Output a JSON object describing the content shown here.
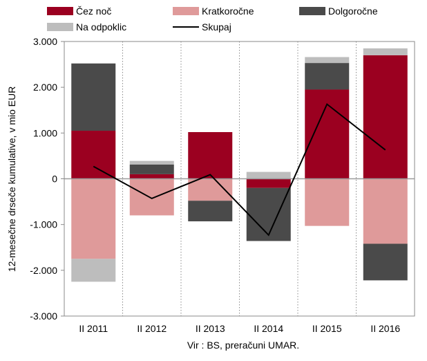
{
  "chart_data": {
    "type": "bar",
    "stacked": true,
    "categories": [
      "II 2011",
      "II 2012",
      "II 2013",
      "II 2014",
      "II 2015",
      "II 2016"
    ],
    "ylabel": "12-mesečne drseče kumulative, v mio EUR",
    "source": "Vir : BS, preračuni UMAR.",
    "ylim": [
      -3000,
      3000
    ],
    "yticks": [
      3000,
      2000,
      1000,
      0,
      -1000,
      -2000,
      -3000
    ],
    "ytick_labels": [
      "3.000",
      "2.000",
      "1.000",
      "0",
      "-1.000",
      "-2.000",
      "-3.000"
    ],
    "grid": "vertical dotted",
    "legend_position": "top",
    "series": [
      {
        "name": "Čez noč",
        "kind": "bar",
        "color": "#9b0020",
        "values": [
          1050,
          100,
          1020,
          -200,
          1950,
          2700
        ]
      },
      {
        "name": "Kratkoročne",
        "kind": "bar",
        "color": "#df9a9a",
        "values": [
          -1750,
          -800,
          -480,
          0,
          -1030,
          -1420
        ]
      },
      {
        "name": "Dolgoročne",
        "kind": "bar",
        "color": "#4a4a4a",
        "values": [
          1470,
          210,
          -450,
          -1160,
          580,
          -800
        ]
      },
      {
        "name": "Na odpoklic",
        "kind": "bar",
        "color": "#bdbdbd",
        "values": [
          -500,
          80,
          0,
          150,
          130,
          150
        ]
      },
      {
        "name": "Skupaj",
        "kind": "line",
        "color": "#000000",
        "values": [
          270,
          -430,
          90,
          -1230,
          1630,
          630
        ]
      }
    ]
  }
}
